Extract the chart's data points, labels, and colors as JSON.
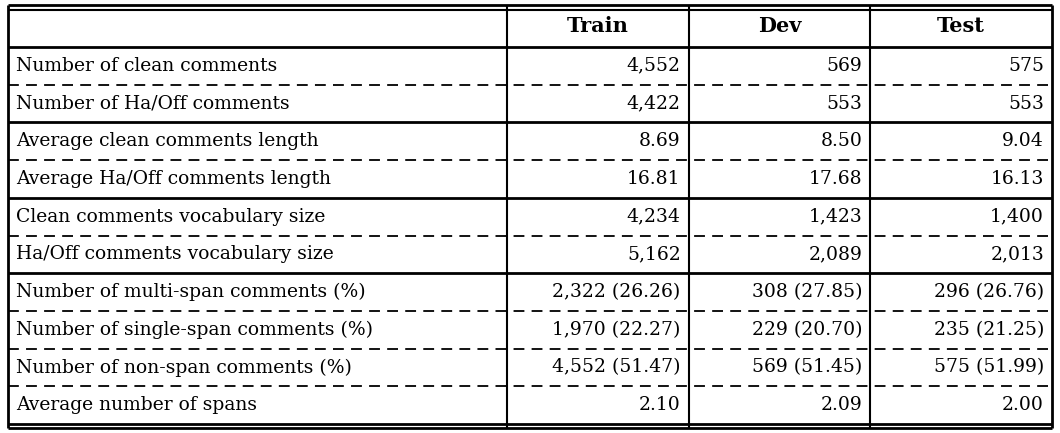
{
  "columns": [
    "",
    "Train",
    "Dev",
    "Test"
  ],
  "rows": [
    [
      "Number of clean comments",
      "4,552",
      "569",
      "575"
    ],
    [
      "Number of Ha/Off comments",
      "4,422",
      "553",
      "553"
    ],
    [
      "Average clean comments length",
      "8.69",
      "8.50",
      "9.04"
    ],
    [
      "Average Ha/Off comments length",
      "16.81",
      "17.68",
      "16.13"
    ],
    [
      "Clean comments vocabulary size",
      "4,234",
      "1,423",
      "1,400"
    ],
    [
      "Ha/Off comments vocabulary size",
      "5,162",
      "2,089",
      "2,013"
    ],
    [
      "Number of multi-span comments (%)",
      "2,322 (26.26)",
      "308 (27.85)",
      "296 (26.76)"
    ],
    [
      "Number of single-span comments (%)",
      "1,970 (22.27)",
      "229 (20.70)",
      "235 (21.25)"
    ],
    [
      "Number of non-span comments (%)",
      "4,552 (51.47)",
      "569 (51.45)",
      "575 (51.99)"
    ],
    [
      "Average number of spans",
      "2.10",
      "2.09",
      "2.00"
    ]
  ],
  "solid_line_after_rows": [
    1,
    3,
    5,
    9
  ],
  "dashed_line_after_rows": [
    0,
    2,
    4,
    6,
    7,
    8
  ],
  "header_fontsize": 15,
  "cell_fontsize": 13.5,
  "bg_color": "#ffffff",
  "text_color": "#000000"
}
